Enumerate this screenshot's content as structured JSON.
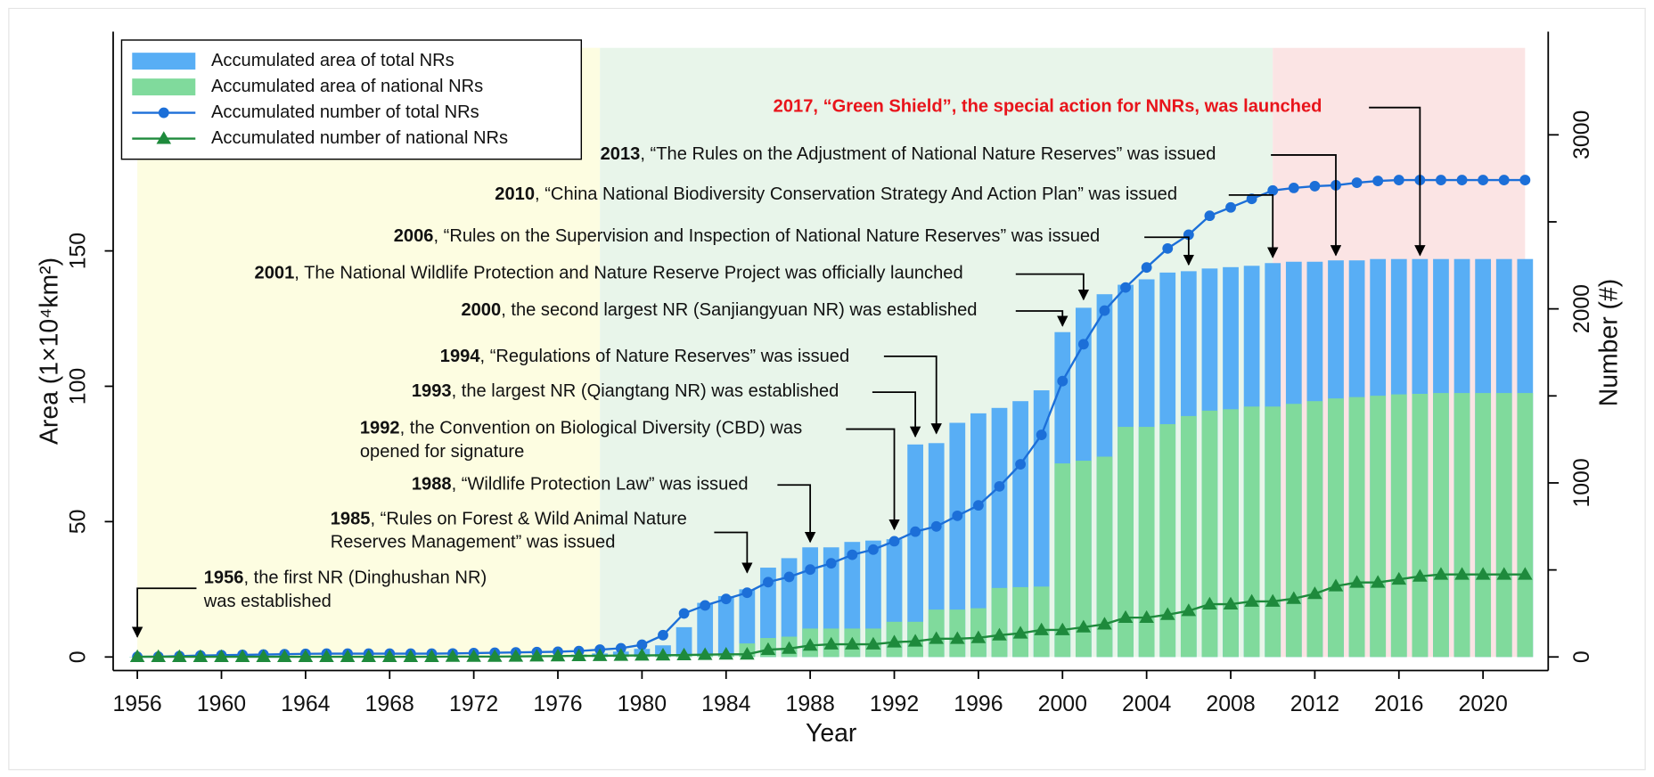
{
  "chart_data": {
    "type": "combo",
    "xlabel": "Year",
    "ylabel": "Area (1×10⁴km²)",
    "y2label": "Number (#)",
    "x": [
      1956,
      1957,
      1958,
      1959,
      1960,
      1961,
      1962,
      1963,
      1964,
      1965,
      1966,
      1967,
      1968,
      1969,
      1970,
      1971,
      1972,
      1973,
      1974,
      1975,
      1976,
      1977,
      1978,
      1979,
      1980,
      1981,
      1982,
      1983,
      1984,
      1985,
      1986,
      1987,
      1988,
      1989,
      1990,
      1991,
      1992,
      1993,
      1994,
      1995,
      1996,
      1997,
      1998,
      1999,
      2000,
      2001,
      2002,
      2003,
      2004,
      2005,
      2006,
      2007,
      2008,
      2009,
      2010,
      2011,
      2012,
      2013,
      2014,
      2015,
      2016,
      2017,
      2018,
      2019,
      2020,
      2021,
      2022
    ],
    "series": [
      {
        "name": "Accumulated area of total NRs",
        "kind": "bar",
        "color": "#58aef5",
        "values": [
          0.1,
          0.1,
          0.1,
          0.1,
          0.2,
          0.2,
          0.2,
          0.2,
          0.2,
          0.2,
          0.2,
          0.2,
          0.2,
          0.2,
          0.2,
          0.2,
          0.3,
          0.3,
          0.4,
          0.5,
          0.6,
          0.9,
          1.3,
          2,
          3,
          4.3,
          11,
          20,
          22.5,
          25,
          33,
          36.5,
          40.5,
          40.5,
          42.5,
          43,
          43.5,
          78.5,
          79,
          86.5,
          90,
          92,
          94.5,
          98.5,
          120,
          129,
          134,
          137.5,
          139.5,
          142,
          142.5,
          143.5,
          144,
          144.5,
          145.5,
          146,
          146,
          146.5,
          146.5,
          147,
          147,
          147,
          147,
          147,
          147,
          147,
          147
        ]
      },
      {
        "name": "Accumulated area of national NRs",
        "kind": "bar",
        "color": "#80da9c",
        "values": [
          0.1,
          0.1,
          0.1,
          0.1,
          0.1,
          0.1,
          0.1,
          0.1,
          0.1,
          0.1,
          0.1,
          0.1,
          0.1,
          0.1,
          0.1,
          0.1,
          0.1,
          0.1,
          0.1,
          0.1,
          0.1,
          0.1,
          0.2,
          0.3,
          0.5,
          0.6,
          0.8,
          1,
          1.2,
          5,
          7,
          7.5,
          10.5,
          10.5,
          10.5,
          10.5,
          13,
          13,
          17.5,
          17.5,
          18,
          25.5,
          25.8,
          26,
          71.5,
          72.5,
          74,
          85,
          85,
          86,
          89,
          91,
          91.5,
          92.5,
          92.5,
          93.5,
          94.5,
          95.5,
          96,
          96.5,
          97,
          97.2,
          97.5,
          97.5,
          97.5,
          97.5,
          97.5
        ]
      },
      {
        "name": "Accumulated number of total NRs",
        "kind": "line",
        "marker": "circle",
        "axis": "y2",
        "color": "#1c6fd8",
        "values": [
          1,
          2,
          5,
          8,
          10,
          12,
          14,
          16,
          18,
          19,
          19,
          19,
          19,
          19,
          19,
          20,
          22,
          24,
          26,
          28,
          30,
          34,
          42,
          50,
          70,
          125,
          250,
          296,
          333,
          369,
          430,
          460,
          502,
          538,
          587,
          617,
          665,
          720,
          750,
          811,
          871,
          980,
          1107,
          1276,
          1585,
          1797,
          1990,
          2123,
          2238,
          2347,
          2426,
          2535,
          2583,
          2632,
          2680,
          2695,
          2705,
          2710,
          2725,
          2735,
          2740,
          2740,
          2740,
          2740,
          2740,
          2740,
          2740
        ]
      },
      {
        "name": "Accumulated number of national NRs",
        "kind": "line",
        "marker": "triangle",
        "axis": "y2",
        "color": "#1e8a3c",
        "values": [
          1,
          1,
          1,
          1,
          1,
          1,
          1,
          1,
          1,
          1,
          1,
          1,
          1,
          1,
          1,
          2,
          2,
          2,
          3,
          4,
          5,
          6,
          7,
          8,
          9,
          10,
          11,
          13,
          15,
          15,
          42,
          48,
          66,
          73,
          73,
          73,
          85,
          90,
          105,
          105,
          110,
          125,
          136,
          155,
          155,
          171,
          188,
          226,
          226,
          243,
          265,
          303,
          303,
          319,
          319,
          335,
          363,
          407,
          428,
          428,
          446,
          463,
          474,
          474,
          474,
          474,
          474
        ]
      }
    ],
    "xlim": [
      1954.85,
      2023.1
    ],
    "xticks": [
      1956,
      1960,
      1964,
      1968,
      1972,
      1976,
      1980,
      1984,
      1988,
      1992,
      1996,
      2000,
      2004,
      2008,
      2012,
      2016,
      2020
    ],
    "ylim": [
      -5,
      231
    ],
    "yticks": [
      0,
      50,
      100,
      150
    ],
    "y2lim": [
      -78,
      3593
    ],
    "y2ticks": [
      0,
      1000,
      2000,
      3000
    ],
    "y2ticks_minor": [
      500,
      1500,
      2500
    ],
    "grid": false,
    "legend": "upper left",
    "periods": [
      {
        "start": 1956,
        "end": 1978,
        "top": 225,
        "color": "#fdfde1"
      },
      {
        "start": 1978,
        "end": 2010,
        "top": 225,
        "color": "#e8f5ea"
      },
      {
        "start": 2010,
        "end": 2022,
        "top": 225,
        "color": "#fbe4e4"
      }
    ],
    "annotations": [
      {
        "year": "1956",
        "lines": [
          ", the first NR (Dinghushan NR)",
          "was established"
        ],
        "x": 1956
      },
      {
        "year": "1985",
        "lines": [
          ", “Rules on Forest & Wild Animal Nature",
          "Reserves Management” was issued"
        ],
        "x": 1985
      },
      {
        "year": "1988",
        "lines": [
          ", “Wildlife Protection Law” was issued"
        ],
        "x": 1988
      },
      {
        "year": "1992",
        "lines": [
          ", the Convention on Biological Diversity (CBD) was",
          "opened for signature"
        ],
        "x": 1992
      },
      {
        "year": "1993",
        "lines": [
          ", the largest NR (Qiangtang NR) was established"
        ],
        "x": 1993
      },
      {
        "year": "1994",
        "lines": [
          ", “Regulations of Nature Reserves” was issued"
        ],
        "x": 1994
      },
      {
        "year": "2000",
        "lines": [
          ", the second largest NR (Sanjiangyuan NR) was established"
        ],
        "x": 2000
      },
      {
        "year": "2001",
        "lines": [
          ", The National Wildlife Protection and Nature Reserve Project was officially launched"
        ],
        "x": 2001
      },
      {
        "year": "2006",
        "lines": [
          ", “Rules on the Supervision and Inspection of National Nature Reserves” was issued"
        ],
        "x": 2006
      },
      {
        "year": "2010",
        "lines": [
          ", “China National Biodiversity Conservation Strategy And Action Plan” was issued"
        ],
        "x": 2010
      },
      {
        "year": "2013",
        "lines": [
          ", “The Rules on the Adjustment of National Nature Reserves” was issued"
        ],
        "x": 2013
      },
      {
        "year": "2017",
        "lines": [
          ", “Green Shield”, the special action for NNRs, was launched"
        ],
        "x": 2017,
        "color": "#e8141b",
        "bold": true
      }
    ]
  }
}
